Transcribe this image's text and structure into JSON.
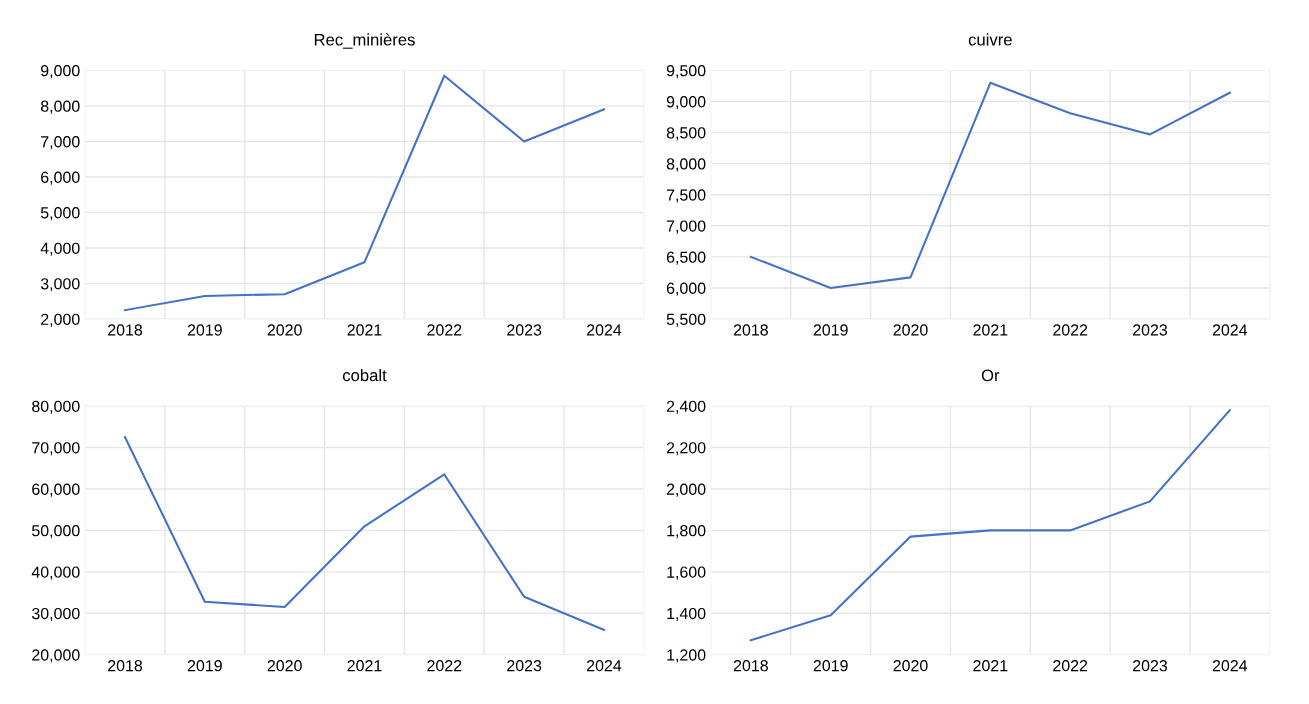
{
  "chart_data": [
    {
      "type": "line",
      "title": "Rec_minières",
      "categories": [
        "2018",
        "2019",
        "2020",
        "2021",
        "2022",
        "2023",
        "2024"
      ],
      "series": [
        {
          "color": "#4472c4",
          "values": [
            2250,
            2650,
            2700,
            3600,
            8850,
            7000,
            7900
          ]
        }
      ],
      "ylim": [
        2000,
        9000
      ],
      "yticks": [
        {
          "value": 2000,
          "label": "2,000"
        },
        {
          "value": 3000,
          "label": "3,000"
        },
        {
          "value": 4000,
          "label": "4,000"
        },
        {
          "value": 5000,
          "label": "5,000"
        },
        {
          "value": 6000,
          "label": "6,000"
        },
        {
          "value": 7000,
          "label": "7,000"
        },
        {
          "value": 8000,
          "label": "8,000"
        },
        {
          "value": 9000,
          "label": "9,000"
        }
      ],
      "grid": true
    },
    {
      "type": "line",
      "title": "cuivre",
      "categories": [
        "2018",
        "2019",
        "2020",
        "2021",
        "2022",
        "2023",
        "2024"
      ],
      "series": [
        {
          "color": "#4472c4",
          "values": [
            6500,
            6000,
            6170,
            9300,
            8810,
            8470,
            9140
          ]
        }
      ],
      "ylim": [
        5500,
        9500
      ],
      "yticks": [
        {
          "value": 5500,
          "label": "5,500"
        },
        {
          "value": 6000,
          "label": "6,000"
        },
        {
          "value": 6500,
          "label": "6,500"
        },
        {
          "value": 7000,
          "label": "7,000"
        },
        {
          "value": 7500,
          "label": "7,500"
        },
        {
          "value": 8000,
          "label": "8,000"
        },
        {
          "value": 8500,
          "label": "8,500"
        },
        {
          "value": 9000,
          "label": "9,000"
        },
        {
          "value": 9500,
          "label": "9,500"
        }
      ],
      "grid": true
    },
    {
      "type": "line",
      "title": "cobalt",
      "categories": [
        "2018",
        "2019",
        "2020",
        "2021",
        "2022",
        "2023",
        "2024"
      ],
      "series": [
        {
          "color": "#4472c4",
          "values": [
            72500,
            32800,
            31500,
            51000,
            63500,
            34000,
            26000
          ]
        }
      ],
      "ylim": [
        20000,
        80000
      ],
      "yticks": [
        {
          "value": 20000,
          "label": "20,000"
        },
        {
          "value": 30000,
          "label": "30,000"
        },
        {
          "value": 40000,
          "label": "40,000"
        },
        {
          "value": 50000,
          "label": "50,000"
        },
        {
          "value": 60000,
          "label": "60,000"
        },
        {
          "value": 70000,
          "label": "70,000"
        },
        {
          "value": 80000,
          "label": "80,000"
        }
      ],
      "grid": true
    },
    {
      "type": "line",
      "title": "Or",
      "categories": [
        "2018",
        "2019",
        "2020",
        "2021",
        "2022",
        "2023",
        "2024"
      ],
      "series": [
        {
          "color": "#4472c4",
          "values": [
            1270,
            1390,
            1770,
            1800,
            1800,
            1940,
            2380
          ]
        }
      ],
      "ylim": [
        1200,
        2400
      ],
      "yticks": [
        {
          "value": 1200,
          "label": "1,200"
        },
        {
          "value": 1400,
          "label": "1,400"
        },
        {
          "value": 1600,
          "label": "1,600"
        },
        {
          "value": 1800,
          "label": "1,800"
        },
        {
          "value": 2000,
          "label": "2,000"
        },
        {
          "value": 2200,
          "label": "2,200"
        },
        {
          "value": 2400,
          "label": "2,400"
        }
      ],
      "grid": true
    }
  ]
}
